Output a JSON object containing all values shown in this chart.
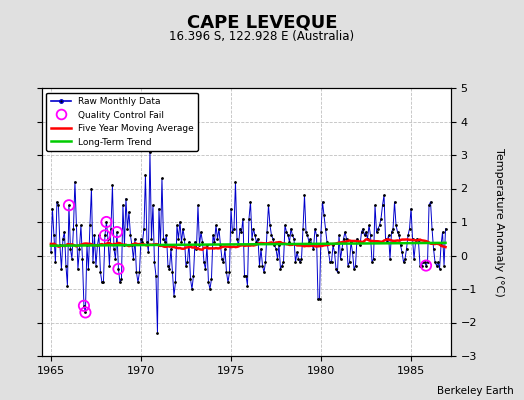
{
  "title": "CAPE LEVEQUE",
  "subtitle": "16.396 S, 122.928 E (Australia)",
  "ylabel": "Temperature Anomaly (°C)",
  "credit": "Berkeley Earth",
  "xlim": [
    1964.5,
    1987.2
  ],
  "ylim": [
    -3,
    5
  ],
  "yticks": [
    -3,
    -2,
    -1,
    0,
    1,
    2,
    3,
    4,
    5
  ],
  "xticks": [
    1965,
    1970,
    1975,
    1980,
    1985
  ],
  "plot_bg_color": "#ffffff",
  "fig_bg_color": "#e0e0e0",
  "raw_color": "#0000cc",
  "ma_color": "#ff0000",
  "trend_color": "#00cc00",
  "qc_color": "#ff00ff",
  "raw_data": [
    0.1,
    1.4,
    0.6,
    -0.2,
    1.6,
    1.5,
    0.3,
    -0.4,
    0.5,
    0.7,
    -0.3,
    -0.9,
    1.5,
    0.2,
    -0.1,
    0.8,
    2.2,
    0.9,
    -0.4,
    0.2,
    0.9,
    -0.1,
    -1.5,
    -1.7,
    0.3,
    -0.4,
    0.9,
    2.0,
    -0.2,
    0.6,
    -0.3,
    0.3,
    0.6,
    -0.5,
    -0.8,
    -0.8,
    0.6,
    1.0,
    0.5,
    -0.3,
    0.8,
    2.1,
    0.2,
    -0.1,
    0.7,
    -0.4,
    -0.8,
    -0.7,
    1.5,
    0.3,
    1.7,
    0.8,
    1.3,
    0.6,
    0.3,
    -0.1,
    0.5,
    -0.5,
    -0.8,
    -0.5,
    0.5,
    0.4,
    0.8,
    2.4,
    0.4,
    0.1,
    3.1,
    0.5,
    1.5,
    -0.2,
    -0.6,
    -2.3,
    1.4,
    0.3,
    2.3,
    0.5,
    0.4,
    0.6,
    -0.3,
    -0.4,
    0.2,
    -0.5,
    -1.2,
    -0.8,
    0.9,
    0.5,
    1.0,
    0.4,
    0.8,
    0.5,
    -0.3,
    -0.2,
    0.4,
    -0.7,
    -1.0,
    -0.6,
    0.4,
    0.2,
    1.5,
    0.3,
    0.7,
    0.4,
    -0.2,
    -0.4,
    0.3,
    -0.8,
    -1.0,
    -0.7,
    0.6,
    0.4,
    0.9,
    0.5,
    0.8,
    0.3,
    -0.1,
    -0.2,
    0.2,
    -0.5,
    -0.8,
    -0.5,
    1.4,
    0.7,
    0.8,
    2.2,
    0.5,
    0.3,
    0.8,
    0.7,
    1.1,
    -0.6,
    -0.6,
    -0.9,
    1.1,
    1.6,
    0.5,
    0.8,
    0.6,
    0.4,
    0.5,
    -0.3,
    0.2,
    -0.3,
    -0.5,
    -0.2,
    0.7,
    1.5,
    0.9,
    0.6,
    0.5,
    0.3,
    0.2,
    -0.1,
    0.3,
    -0.4,
    -0.3,
    -0.2,
    0.9,
    0.7,
    0.6,
    0.4,
    0.8,
    0.6,
    0.5,
    -0.2,
    0.1,
    -0.1,
    -0.2,
    -0.1,
    0.8,
    1.8,
    0.7,
    0.6,
    0.4,
    0.5,
    0.3,
    0.2,
    0.8,
    0.6,
    -1.3,
    -1.3,
    0.7,
    1.6,
    1.2,
    0.8,
    0.4,
    0.1,
    -0.2,
    -0.2,
    0.3,
    0.1,
    -0.4,
    -0.5,
    0.6,
    -0.1,
    0.2,
    0.5,
    0.7,
    0.5,
    -0.3,
    -0.2,
    0.4,
    0.1,
    -0.4,
    -0.3,
    0.5,
    0.4,
    0.3,
    0.7,
    0.8,
    0.6,
    0.7,
    0.5,
    0.9,
    0.6,
    -0.2,
    -0.1,
    1.5,
    0.7,
    0.8,
    0.9,
    1.1,
    1.5,
    1.8,
    0.5,
    0.4,
    0.6,
    -0.1,
    0.7,
    0.8,
    1.6,
    0.9,
    0.7,
    0.6,
    0.3,
    0.1,
    -0.2,
    -0.1,
    0.2,
    0.6,
    0.8,
    1.4,
    0.5,
    -0.1,
    0.4,
    0.5,
    0.4,
    -0.3,
    -0.3,
    -0.2,
    -0.2,
    -0.3,
    -0.2,
    1.5,
    1.6,
    0.8,
    0.2,
    -0.2,
    -0.3,
    -0.2,
    -0.4,
    0.3,
    0.7,
    -0.3,
    0.8
  ],
  "start_year": 1965,
  "start_month": 1,
  "qc_fail_indices": [
    12,
    22,
    23,
    36,
    37,
    44,
    45,
    250
  ]
}
